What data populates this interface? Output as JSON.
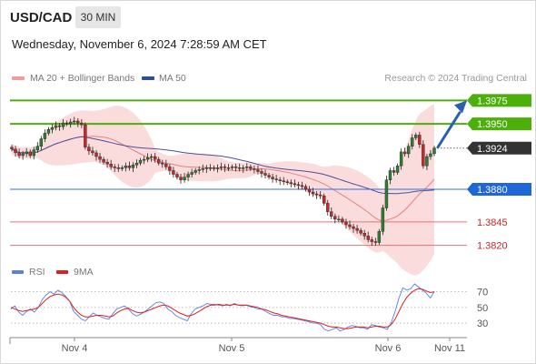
{
  "header": {
    "symbol": "USD/CAD",
    "period": "30 MIN",
    "datetime": "Wednesday, November 6, 2024 7:28:59 AM CET"
  },
  "legend": {
    "ma20_label": "MA 20 + Bollinger Bands",
    "ma50_label": "MA 50",
    "research": "Research © 2024 Trading Central",
    "rsi_label": "RSI",
    "ma9_label": "9MA"
  },
  "colors": {
    "bollinger_band": "#f9d3d3",
    "ma20": "#e98080",
    "ma50": "#4a4f9e",
    "candle_up": "#2e7d32",
    "candle_down": "#c62828",
    "resistance": "#4caf0a",
    "pivot": "#2f6fe0",
    "support": "#e57373",
    "last_price": "#3a3a3a",
    "arrow": "#2a5fb0",
    "rsi": "#5b7fe0",
    "ma9": "#dd1f1f"
  },
  "chart_data": [
    {
      "type": "candlestick",
      "ylim": [
        1.3805,
        1.399
      ],
      "x_ticks": [
        "Nov 4",
        "Nov 5",
        "Nov 6",
        "Nov 11"
      ],
      "levels": [
        {
          "value": 1.3975,
          "label": "1.3975",
          "kind": "resistance"
        },
        {
          "value": 1.395,
          "label": "1.3950",
          "kind": "resistance"
        },
        {
          "value": 1.3924,
          "label": "1.3924",
          "kind": "last"
        },
        {
          "value": 1.388,
          "label": "1.3880",
          "kind": "pivot"
        },
        {
          "value": 1.3845,
          "label": "1.3845",
          "kind": "support"
        },
        {
          "value": 1.382,
          "label": "1.3820",
          "kind": "support"
        }
      ],
      "series": [
        {
          "name": "MA 20 + Bollinger Bands"
        },
        {
          "name": "MA 50"
        }
      ],
      "closes": [
        1.3923,
        1.3919,
        1.3916,
        1.3918,
        1.392,
        1.3916,
        1.3922,
        1.3926,
        1.3934,
        1.394,
        1.3944,
        1.3946,
        1.3948,
        1.3947,
        1.3951,
        1.395,
        1.3952,
        1.3953,
        1.3951,
        1.3949,
        1.3925,
        1.3921,
        1.3919,
        1.3915,
        1.3912,
        1.3909,
        1.3907,
        1.3904,
        1.3903,
        1.3902,
        1.3903,
        1.3905,
        1.3903,
        1.3906,
        1.3908,
        1.3911,
        1.3912,
        1.3914,
        1.3915,
        1.3912,
        1.3908,
        1.3907,
        1.3904,
        1.39,
        1.3896,
        1.3893,
        1.389,
        1.3893,
        1.3896,
        1.3898,
        1.39,
        1.3901,
        1.3902,
        1.3903,
        1.3903,
        1.3902,
        1.3903,
        1.3904,
        1.3903,
        1.3903,
        1.3904,
        1.3903,
        1.3902,
        1.3903,
        1.3904,
        1.3902,
        1.3901,
        1.3899,
        1.3897,
        1.3895,
        1.3893,
        1.3891,
        1.389,
        1.3889,
        1.3888,
        1.3887,
        1.3886,
        1.3885,
        1.3884,
        1.3883,
        1.388,
        1.3877,
        1.3875,
        1.3874,
        1.3873,
        1.3865,
        1.3856,
        1.3851,
        1.3848,
        1.3848,
        1.3845,
        1.3842,
        1.384,
        1.3838,
        1.3836,
        1.3833,
        1.383,
        1.3826,
        1.3824,
        1.3823,
        1.3835,
        1.386,
        1.389,
        1.39,
        1.3898,
        1.3905,
        1.392,
        1.3918,
        1.3926,
        1.3935,
        1.3938,
        1.3928,
        1.3905,
        1.3915,
        1.3918,
        1.3924
      ],
      "rsi": {
        "ylim": [
          15,
          80
        ],
        "ticks": [
          70,
          50,
          30
        ],
        "values": [
          48,
          52,
          44,
          40,
          45,
          48,
          44,
          50,
          60,
          66,
          70,
          67,
          72,
          69,
          64,
          58,
          45,
          40,
          35,
          33,
          38,
          43,
          40,
          38,
          36,
          35,
          42,
          48,
          50,
          52,
          48,
          42,
          39,
          41,
          44,
          48,
          52,
          56,
          57,
          55,
          48,
          45,
          40,
          37,
          35,
          33,
          42,
          48,
          50,
          52,
          55,
          54,
          54,
          53,
          52,
          54,
          52,
          55,
          53,
          52,
          53,
          51,
          50,
          48,
          48,
          45,
          42,
          40,
          40,
          38,
          38,
          36,
          36,
          35,
          34,
          33,
          32,
          30,
          30,
          28,
          22,
          20,
          22,
          24,
          20,
          22,
          25,
          27,
          26,
          24,
          24,
          22,
          28,
          27,
          25,
          24,
          22,
          30,
          45,
          62,
          75,
          72,
          74,
          80,
          76,
          72,
          68,
          62,
          70
        ],
        "ma": [
          50,
          48,
          46,
          45,
          46,
          47,
          48,
          50,
          55,
          60,
          64,
          66,
          67,
          66,
          63,
          58,
          50,
          44,
          40,
          38,
          38,
          39,
          40,
          40,
          39,
          38,
          39,
          43,
          46,
          48,
          49,
          46,
          44,
          43,
          44,
          46,
          48,
          50,
          52,
          53,
          52,
          49,
          46,
          43,
          41,
          39,
          40,
          42,
          45,
          48,
          51,
          53,
          53,
          54,
          53,
          53,
          53,
          54,
          53,
          53,
          53,
          52,
          51,
          50,
          48,
          47,
          45,
          43,
          42,
          40,
          39,
          38,
          37,
          36,
          35,
          34,
          33,
          32,
          31,
          30,
          28,
          26,
          25,
          25,
          24,
          23,
          23,
          24,
          25,
          25,
          25,
          24,
          25,
          26,
          26,
          25,
          25,
          28,
          35,
          45,
          55,
          63,
          68,
          72,
          74,
          73,
          71,
          69,
          70
        ]
      }
    }
  ]
}
